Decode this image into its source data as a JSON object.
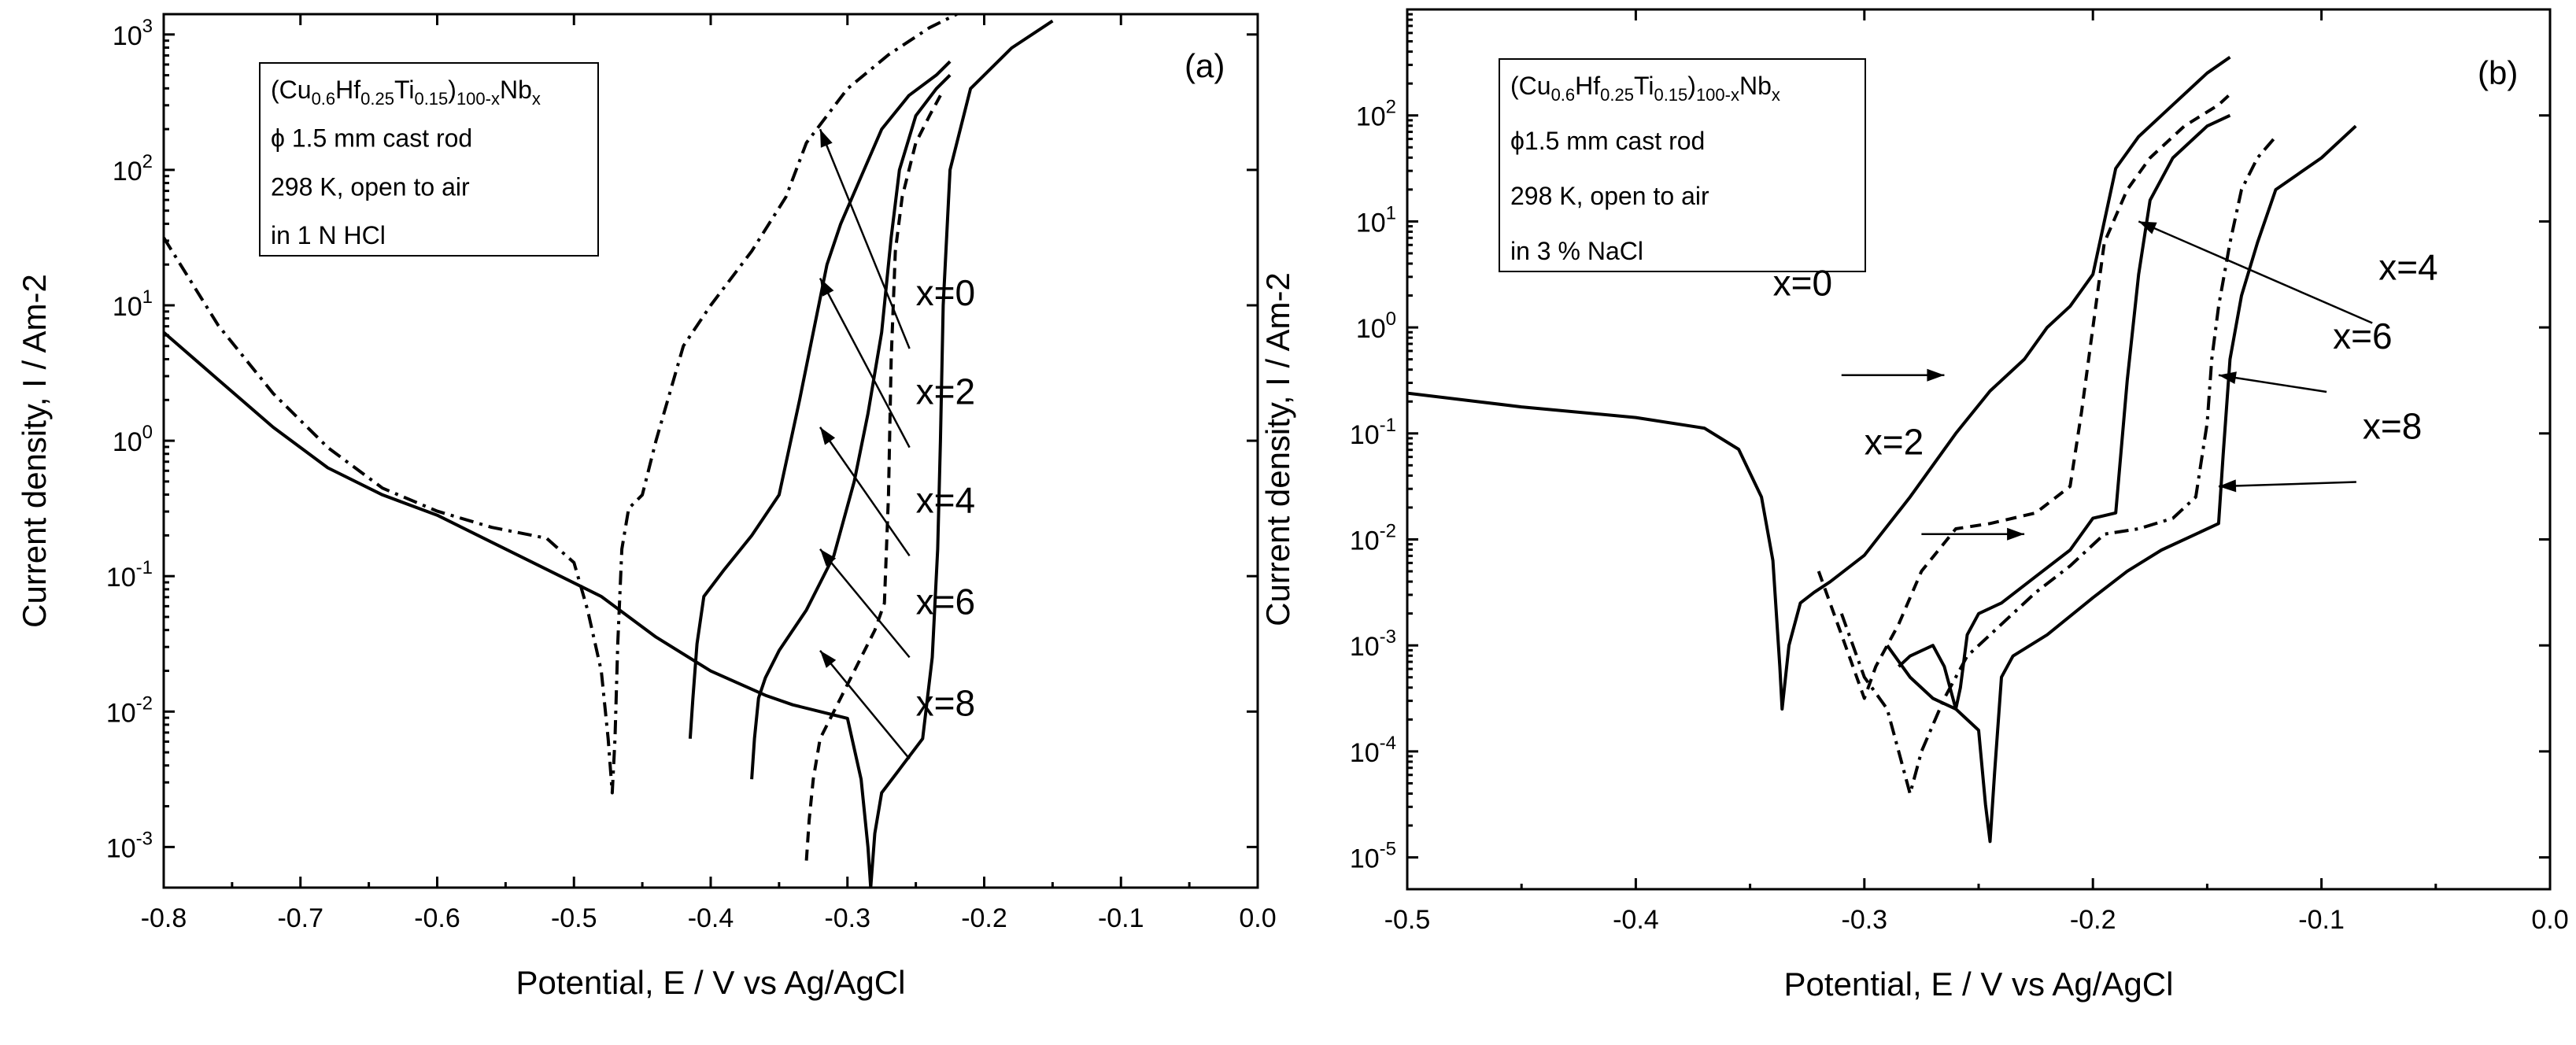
{
  "chart_data": [
    {
      "panel": "(a)",
      "type": "line",
      "x_scale": "linear",
      "y_scale": "log",
      "xlabel": "Potential, E / V vs Ag/AgCl",
      "ylabel": "Current density, I / Am-2",
      "xlim": [
        -0.8,
        0.0
      ],
      "ylim_exp": [
        -3.3,
        3.15
      ],
      "x_ticks": [
        "-0.8",
        "-0.7",
        "-0.6",
        "-0.5",
        "-0.4",
        "-0.3",
        "-0.2",
        "-0.1",
        "0.0"
      ],
      "y_tick_exponents": [
        "-3",
        "-2",
        "-1",
        "0",
        "1",
        "2",
        "3"
      ],
      "y_tick_base": "10",
      "info_box": {
        "composition": {
          "open": "(Cu",
          "s1": "0.6",
          "hf": "Hf",
          "s2": "0.25",
          "ti": "Ti",
          "s3": "0.15",
          "close": ")",
          "s4": "100-x",
          "nb": "Nb",
          "s5": "x"
        },
        "line2": "ϕ 1.5 mm cast rod",
        "line3": "298 K, open to air",
        "line4": "in 1 N HCl"
      },
      "series": [
        {
          "name": "x=0",
          "style": "dash-dot",
          "label_pos": [
            -0.25,
            1.0
          ],
          "arrow_to": [
            -0.32,
            2.3
          ],
          "points": [
            [
              -0.8,
              1.5
            ],
            [
              -0.76,
              0.85
            ],
            [
              -0.72,
              0.35
            ],
            [
              -0.68,
              -0.05
            ],
            [
              -0.64,
              -0.35
            ],
            [
              -0.6,
              -0.52
            ],
            [
              -0.56,
              -0.64
            ],
            [
              -0.52,
              -0.72
            ],
            [
              -0.5,
              -0.9
            ],
            [
              -0.49,
              -1.25
            ],
            [
              -0.48,
              -1.7
            ],
            [
              -0.475,
              -2.2
            ],
            [
              -0.472,
              -2.6
            ],
            [
              -0.47,
              -2.2
            ],
            [
              -0.468,
              -1.5
            ],
            [
              -0.465,
              -0.8
            ],
            [
              -0.46,
              -0.5
            ],
            [
              -0.45,
              -0.4
            ],
            [
              -0.44,
              0.0
            ],
            [
              -0.42,
              0.7
            ],
            [
              -0.4,
              1.0
            ],
            [
              -0.37,
              1.4
            ],
            [
              -0.345,
              1.8
            ],
            [
              -0.33,
              2.2
            ],
            [
              -0.3,
              2.6
            ],
            [
              -0.27,
              2.85
            ],
            [
              -0.24,
              3.05
            ],
            [
              -0.22,
              3.15
            ]
          ]
        },
        {
          "name": "x=2",
          "style": "solid",
          "label_pos": [
            -0.25,
            0.27
          ],
          "arrow_to": [
            -0.32,
            1.2
          ],
          "points": [
            [
              -0.8,
              0.8
            ],
            [
              -0.76,
              0.45
            ],
            [
              -0.72,
              0.1
            ],
            [
              -0.68,
              -0.2
            ],
            [
              -0.64,
              -0.4
            ],
            [
              -0.6,
              -0.55
            ],
            [
              -0.56,
              -0.75
            ],
            [
              -0.52,
              -0.95
            ],
            [
              -0.48,
              -1.15
            ],
            [
              -0.44,
              -1.45
            ],
            [
              -0.4,
              -1.7
            ],
            [
              -0.36,
              -1.88
            ],
            [
              -0.34,
              -1.95
            ],
            [
              -0.32,
              -2.0
            ],
            [
              -0.3,
              -2.05
            ],
            [
              -0.29,
              -2.5
            ],
            [
              -0.285,
              -3.0
            ],
            [
              -0.283,
              -3.3
            ],
            [
              -0.28,
              -2.9
            ],
            [
              -0.275,
              -2.6
            ],
            [
              -0.26,
              -2.4
            ],
            [
              -0.245,
              -2.2
            ],
            [
              -0.238,
              -1.6
            ],
            [
              -0.234,
              -0.8
            ],
            [
              -0.232,
              0.0
            ],
            [
              -0.23,
              1.0
            ],
            [
              -0.225,
              2.0
            ],
            [
              -0.21,
              2.6
            ],
            [
              -0.18,
              2.9
            ],
            [
              -0.15,
              3.1
            ]
          ]
        },
        {
          "name": "x=4",
          "style": "solid",
          "label_pos": [
            -0.25,
            -0.53
          ],
          "arrow_to": [
            -0.32,
            0.1
          ],
          "points": [
            [
              -0.415,
              -2.2
            ],
            [
              -0.413,
              -1.9
            ],
            [
              -0.41,
              -1.5
            ],
            [
              -0.405,
              -1.15
            ],
            [
              -0.39,
              -0.95
            ],
            [
              -0.37,
              -0.7
            ],
            [
              -0.35,
              -0.4
            ],
            [
              -0.335,
              0.3
            ],
            [
              -0.325,
              0.8
            ],
            [
              -0.315,
              1.3
            ],
            [
              -0.305,
              1.6
            ],
            [
              -0.29,
              1.95
            ],
            [
              -0.275,
              2.3
            ],
            [
              -0.255,
              2.55
            ],
            [
              -0.235,
              2.7
            ],
            [
              -0.225,
              2.8
            ]
          ]
        },
        {
          "name": "x=6",
          "style": "solid",
          "label_pos": [
            -0.25,
            -1.28
          ],
          "arrow_to": [
            -0.32,
            -0.8
          ],
          "points": [
            [
              -0.37,
              -2.5
            ],
            [
              -0.368,
              -2.2
            ],
            [
              -0.365,
              -1.9
            ],
            [
              -0.36,
              -1.75
            ],
            [
              -0.35,
              -1.55
            ],
            [
              -0.33,
              -1.25
            ],
            [
              -0.31,
              -0.85
            ],
            [
              -0.295,
              -0.3
            ],
            [
              -0.285,
              0.2
            ],
            [
              -0.275,
              0.8
            ],
            [
              -0.268,
              1.5
            ],
            [
              -0.262,
              2.0
            ],
            [
              -0.25,
              2.4
            ],
            [
              -0.235,
              2.6
            ],
            [
              -0.225,
              2.7
            ]
          ]
        },
        {
          "name": "x=8",
          "style": "dashed",
          "label_pos": [
            -0.25,
            -2.03
          ],
          "arrow_to": [
            -0.32,
            -1.55
          ],
          "points": [
            [
              -0.33,
              -3.1
            ],
            [
              -0.328,
              -2.8
            ],
            [
              -0.325,
              -2.5
            ],
            [
              -0.32,
              -2.2
            ],
            [
              -0.305,
              -1.9
            ],
            [
              -0.29,
              -1.6
            ],
            [
              -0.28,
              -1.4
            ],
            [
              -0.273,
              -1.2
            ],
            [
              -0.27,
              -0.4
            ],
            [
              -0.268,
              0.6
            ],
            [
              -0.265,
              1.4
            ],
            [
              -0.26,
              1.8
            ],
            [
              -0.25,
              2.2
            ],
            [
              -0.24,
              2.4
            ],
            [
              -0.232,
              2.55
            ]
          ]
        }
      ]
    },
    {
      "panel": "(b)",
      "type": "line",
      "x_scale": "linear",
      "y_scale": "log",
      "xlabel": "Potential, E / V vs Ag/AgCl",
      "ylabel": "Current density, I / Am-2",
      "xlim": [
        -0.5,
        0.0
      ],
      "ylim_exp": [
        -5.3,
        3.0
      ],
      "x_ticks": [
        "-0.5",
        "-0.4",
        "-0.3",
        "-0.2",
        "-0.1",
        "0.0"
      ],
      "y_tick_exponents": [
        "-5",
        "-4",
        "-3",
        "-2",
        "-1",
        "0",
        "1",
        "2"
      ],
      "y_tick_base": "10",
      "info_box": {
        "composition": {
          "open": "(Cu",
          "s1": "0.6",
          "hf": "Hf",
          "s2": "0.25",
          "ti": "Ti",
          "s3": "0.15",
          "close": ")",
          "s4": "100-x",
          "nb": "Nb",
          "s5": "x"
        },
        "line2": "ϕ1.5 mm cast rod",
        "line3": "298 K, open to air",
        "line4": "in 3 % NaCl"
      },
      "series": [
        {
          "name": "x=0",
          "style": "solid",
          "label_pos": [
            -0.34,
            0.3
          ],
          "arrow_from": [
            -0.31,
            -0.45
          ],
          "arrow_to": [
            -0.265,
            -0.45
          ],
          "points": [
            [
              -0.5,
              -0.62
            ],
            [
              -0.45,
              -0.75
            ],
            [
              -0.4,
              -0.85
            ],
            [
              -0.37,
              -0.95
            ],
            [
              -0.355,
              -1.15
            ],
            [
              -0.345,
              -1.6
            ],
            [
              -0.34,
              -2.2
            ],
            [
              -0.337,
              -3.2
            ],
            [
              -0.336,
              -3.6
            ],
            [
              -0.333,
              -3.0
            ],
            [
              -0.328,
              -2.6
            ],
            [
              -0.322,
              -2.5
            ],
            [
              -0.315,
              -2.4
            ],
            [
              -0.3,
              -2.15
            ],
            [
              -0.28,
              -1.6
            ],
            [
              -0.26,
              -1.0
            ],
            [
              -0.245,
              -0.6
            ],
            [
              -0.23,
              -0.3
            ],
            [
              -0.22,
              0.0
            ],
            [
              -0.21,
              0.2
            ],
            [
              -0.2,
              0.5
            ],
            [
              -0.195,
              1.0
            ],
            [
              -0.19,
              1.5
            ],
            [
              -0.18,
              1.8
            ],
            [
              -0.165,
              2.1
            ],
            [
              -0.15,
              2.4
            ],
            [
              -0.14,
              2.55
            ]
          ]
        },
        {
          "name": "x=2",
          "style": "dashed",
          "label_pos": [
            -0.3,
            -1.2
          ],
          "arrow_from": [
            -0.275,
            -1.95
          ],
          "arrow_to": [
            -0.23,
            -1.95
          ],
          "points": [
            [
              -0.32,
              -2.3
            ],
            [
              -0.315,
              -2.6
            ],
            [
              -0.31,
              -2.9
            ],
            [
              -0.305,
              -3.2
            ],
            [
              -0.3,
              -3.5
            ],
            [
              -0.295,
              -3.2
            ],
            [
              -0.29,
              -3.0
            ],
            [
              -0.285,
              -2.8
            ],
            [
              -0.275,
              -2.3
            ],
            [
              -0.26,
              -1.9
            ],
            [
              -0.245,
              -1.85
            ],
            [
              -0.225,
              -1.75
            ],
            [
              -0.21,
              -1.5
            ],
            [
              -0.205,
              -0.8
            ],
            [
              -0.2,
              0.0
            ],
            [
              -0.195,
              0.8
            ],
            [
              -0.185,
              1.3
            ],
            [
              -0.175,
              1.6
            ],
            [
              -0.16,
              1.9
            ],
            [
              -0.145,
              2.1
            ],
            [
              -0.14,
              2.2
            ]
          ]
        },
        {
          "name": "x=4",
          "style": "solid",
          "label_pos": [
            -0.075,
            0.45
          ],
          "arrow_to": [
            -0.18,
            1.0
          ],
          "points": [
            [
              -0.285,
              -3.2
            ],
            [
              -0.28,
              -3.1
            ],
            [
              -0.27,
              -3.0
            ],
            [
              -0.265,
              -3.2
            ],
            [
              -0.26,
              -3.6
            ],
            [
              -0.258,
              -3.4
            ],
            [
              -0.255,
              -2.9
            ],
            [
              -0.25,
              -2.7
            ],
            [
              -0.24,
              -2.6
            ],
            [
              -0.225,
              -2.35
            ],
            [
              -0.21,
              -2.1
            ],
            [
              -0.2,
              -1.8
            ],
            [
              -0.19,
              -1.75
            ],
            [
              -0.185,
              -0.5
            ],
            [
              -0.18,
              0.5
            ],
            [
              -0.175,
              1.2
            ],
            [
              -0.165,
              1.6
            ],
            [
              -0.15,
              1.9
            ],
            [
              -0.14,
              2.0
            ]
          ]
        },
        {
          "name": "x=6",
          "style": "dash-dot",
          "label_pos": [
            -0.095,
            -0.2
          ],
          "arrow_to": [
            -0.145,
            -0.45
          ],
          "points": [
            [
              -0.31,
              -2.7
            ],
            [
              -0.3,
              -3.3
            ],
            [
              -0.29,
              -3.6
            ],
            [
              -0.285,
              -4.0
            ],
            [
              -0.28,
              -4.4
            ],
            [
              -0.275,
              -4.0
            ],
            [
              -0.265,
              -3.5
            ],
            [
              -0.255,
              -3.1
            ],
            [
              -0.24,
              -2.8
            ],
            [
              -0.225,
              -2.5
            ],
            [
              -0.21,
              -2.25
            ],
            [
              -0.195,
              -1.95
            ],
            [
              -0.18,
              -1.9
            ],
            [
              -0.165,
              -1.8
            ],
            [
              -0.155,
              -1.6
            ],
            [
              -0.15,
              -0.9
            ],
            [
              -0.148,
              -0.3
            ],
            [
              -0.145,
              0.2
            ],
            [
              -0.14,
              0.8
            ],
            [
              -0.135,
              1.3
            ],
            [
              -0.128,
              1.6
            ],
            [
              -0.12,
              1.8
            ]
          ]
        },
        {
          "name": "x=8",
          "style": "solid",
          "label_pos": [
            -0.082,
            -1.05
          ],
          "arrow_to": [
            -0.145,
            -1.5
          ],
          "points": [
            [
              -0.29,
              -3.0
            ],
            [
              -0.28,
              -3.3
            ],
            [
              -0.27,
              -3.5
            ],
            [
              -0.26,
              -3.6
            ],
            [
              -0.25,
              -3.8
            ],
            [
              -0.247,
              -4.5
            ],
            [
              -0.245,
              -4.85
            ],
            [
              -0.243,
              -4.2
            ],
            [
              -0.24,
              -3.3
            ],
            [
              -0.235,
              -3.1
            ],
            [
              -0.22,
              -2.9
            ],
            [
              -0.2,
              -2.55
            ],
            [
              -0.185,
              -2.3
            ],
            [
              -0.17,
              -2.1
            ],
            [
              -0.155,
              -1.95
            ],
            [
              -0.145,
              -1.85
            ],
            [
              -0.143,
              -1.2
            ],
            [
              -0.14,
              -0.3
            ],
            [
              -0.135,
              0.3
            ],
            [
              -0.128,
              0.8
            ],
            [
              -0.12,
              1.3
            ],
            [
              -0.1,
              1.6
            ],
            [
              -0.085,
              1.9
            ]
          ]
        }
      ]
    }
  ]
}
